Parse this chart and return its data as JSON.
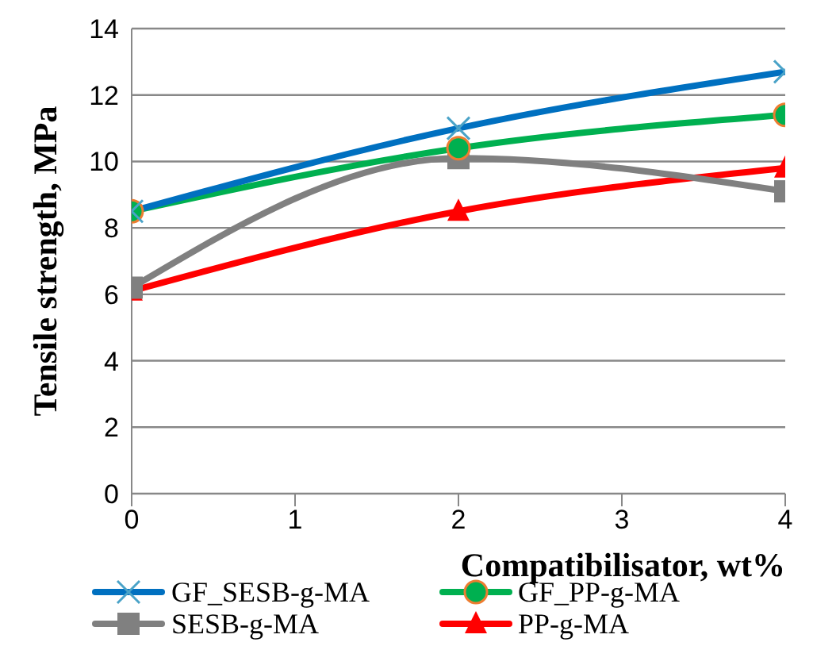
{
  "chart_data": {
    "type": "line",
    "xlabel": "Compatibilisator, wt%",
    "ylabel": "Tensile strength, MPa",
    "x": [
      0,
      2,
      4
    ],
    "xlim": [
      0,
      4
    ],
    "xticks": [
      0,
      1,
      2,
      3,
      4
    ],
    "ylim": [
      0,
      14
    ],
    "yticks": [
      0,
      2,
      4,
      6,
      8,
      10,
      12,
      14
    ],
    "grid": "y",
    "legend": "bottom",
    "series": [
      {
        "name": "GF_SESB-g-MA",
        "color": "#0070c0",
        "marker": "cross",
        "values": [
          8.5,
          11.0,
          12.7
        ]
      },
      {
        "name": "GF_PP-g-MA",
        "color": "#00b050",
        "marker": "circle",
        "values": [
          8.5,
          10.4,
          11.4
        ]
      },
      {
        "name": "SESB-g-MA",
        "color": "#808080",
        "marker": "square",
        "values": [
          6.2,
          10.1,
          9.1
        ]
      },
      {
        "name": "PP-g-MA",
        "color": "#ff0000",
        "marker": "triangle",
        "values": [
          6.1,
          8.5,
          9.8
        ]
      }
    ]
  }
}
